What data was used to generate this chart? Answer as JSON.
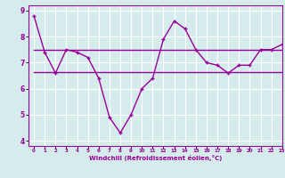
{
  "background_color": "#d6ecec",
  "grid_color": "#ffffff",
  "line_color": "#990099",
  "line1_x": [
    0,
    1,
    2,
    3,
    4,
    5,
    6,
    7,
    8,
    9,
    10,
    11,
    12,
    13,
    14,
    15,
    16,
    17,
    18,
    19,
    20,
    21,
    22,
    23
  ],
  "line1_y": [
    8.8,
    7.4,
    6.6,
    7.5,
    7.4,
    7.2,
    6.4,
    4.9,
    4.3,
    5.0,
    6.0,
    6.4,
    7.9,
    8.6,
    8.3,
    7.5,
    7.0,
    6.9,
    6.6,
    6.9,
    6.9,
    7.5,
    7.5,
    7.7
  ],
  "line2_x": [
    0,
    23
  ],
  "line2_y": [
    7.5,
    7.5
  ],
  "line3_x": [
    0,
    23
  ],
  "line3_y": [
    6.65,
    6.65
  ],
  "xlim": [
    -0.5,
    23
  ],
  "ylim": [
    3.8,
    9.2
  ],
  "xticks": [
    0,
    1,
    2,
    3,
    4,
    5,
    6,
    7,
    8,
    9,
    10,
    11,
    12,
    13,
    14,
    15,
    16,
    17,
    18,
    19,
    20,
    21,
    22,
    23
  ],
  "yticks": [
    4,
    5,
    6,
    7,
    8,
    9
  ],
  "xlabel": "Windchill (Refroidissement éolien,°C)"
}
